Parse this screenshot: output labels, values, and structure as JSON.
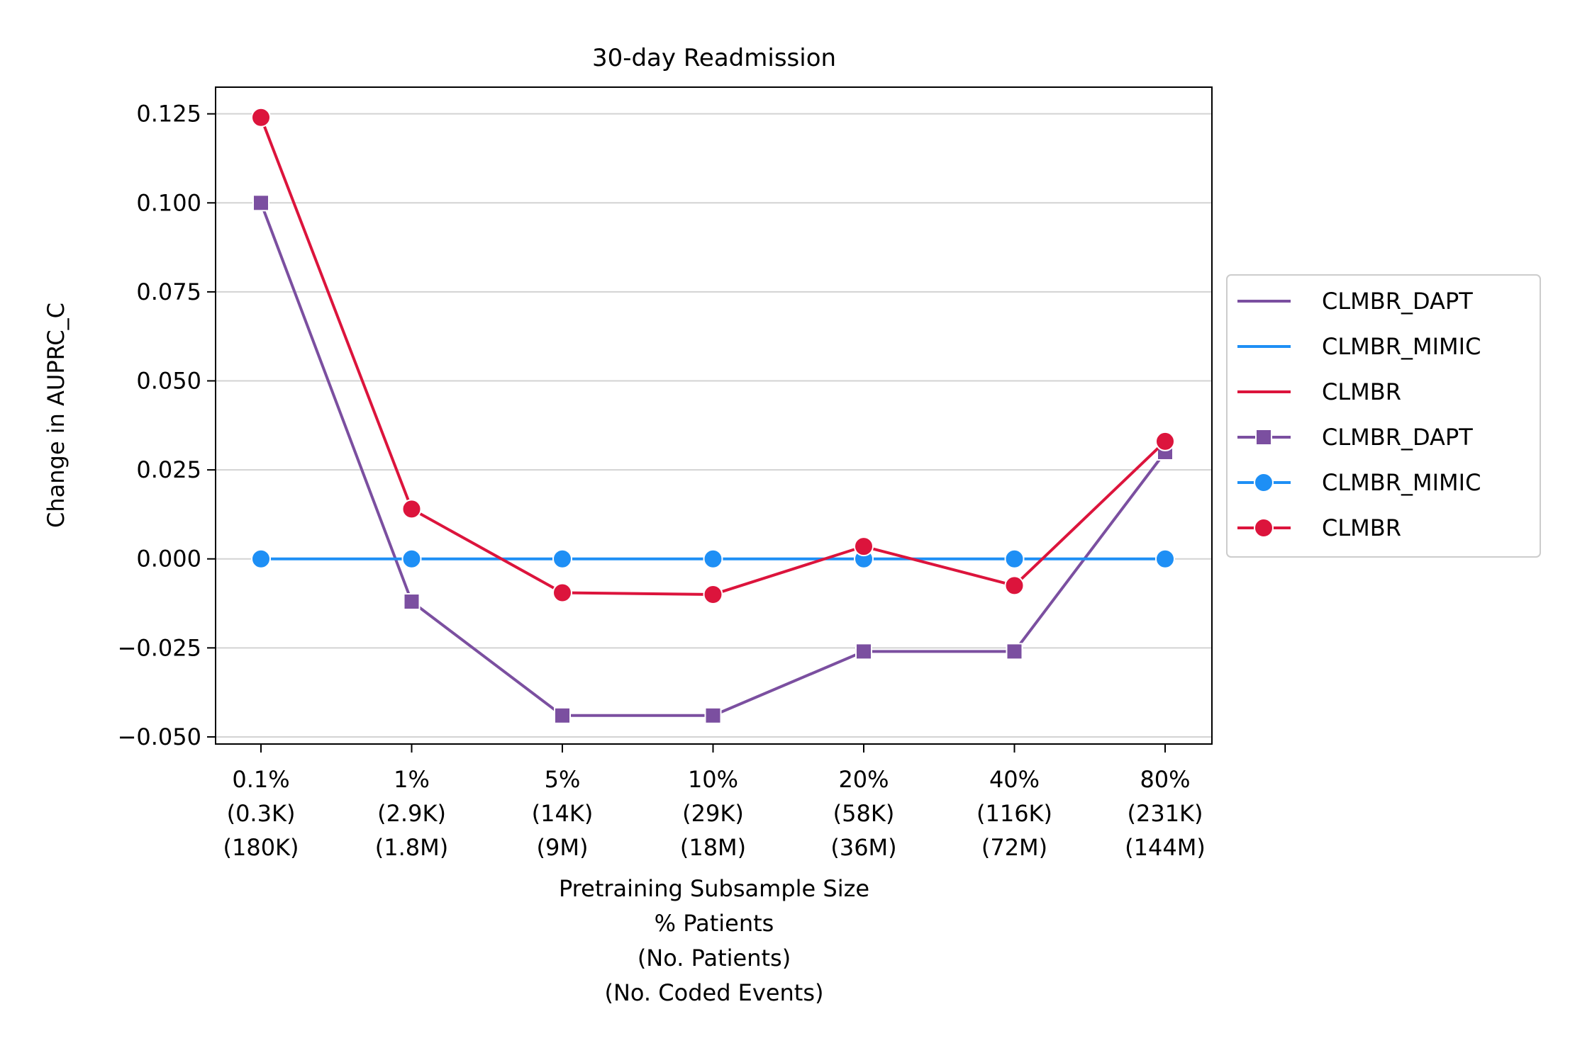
{
  "chart_data": {
    "type": "line",
    "title": "30-day Readmission",
    "xlabel": [
      "Pretraining Subsample Size",
      "% Patients",
      "(No. Patients)",
      "(No. Coded Events)"
    ],
    "ylabel": "Change in AUPRC_C",
    "categories": [
      [
        "0.1%",
        "(0.3K)",
        "(180K)"
      ],
      [
        "1%",
        "(2.9K)",
        "(1.8M)"
      ],
      [
        "5%",
        "(14K)",
        "(9M)"
      ],
      [
        "10%",
        "(29K)",
        "(18M)"
      ],
      [
        "20%",
        "(58K)",
        "(36M)"
      ],
      [
        "40%",
        "(116K)",
        "(72M)"
      ],
      [
        "80%",
        "(231K)",
        "(144M)"
      ]
    ],
    "ylim": [
      -0.052,
      0.1325
    ],
    "yticks": [
      -0.05,
      -0.025,
      0.0,
      0.025,
      0.05,
      0.075,
      0.1,
      0.125
    ],
    "ytick_labels": [
      "−0.050",
      "−0.025",
      "0.000",
      "0.025",
      "0.050",
      "0.075",
      "0.100",
      "0.125"
    ],
    "grid": "horizontal",
    "legend_position": "right, outside",
    "series": [
      {
        "name": "CLMBR_DAPT",
        "color": "#7b4fa0",
        "marker": "square",
        "values": [
          0.1,
          -0.012,
          -0.044,
          -0.044,
          -0.026,
          -0.026,
          0.03
        ]
      },
      {
        "name": "CLMBR_MIMIC",
        "color": "#1e8ff5",
        "marker": "circle",
        "values": [
          0.0,
          0.0,
          0.0,
          0.0,
          0.0,
          0.0,
          0.0
        ]
      },
      {
        "name": "CLMBR",
        "color": "#dc143c",
        "marker": "circle",
        "values": [
          0.124,
          0.014,
          -0.0095,
          -0.01,
          0.0035,
          -0.0075,
          0.033
        ]
      }
    ],
    "legend_entries": [
      {
        "label": "CLMBR_DAPT",
        "series": 0,
        "marker": false
      },
      {
        "label": "CLMBR_MIMIC",
        "series": 1,
        "marker": false
      },
      {
        "label": "CLMBR",
        "series": 2,
        "marker": false
      },
      {
        "label": "CLMBR_DAPT",
        "series": 0,
        "marker": true
      },
      {
        "label": "CLMBR_MIMIC",
        "series": 1,
        "marker": true
      },
      {
        "label": "CLMBR",
        "series": 2,
        "marker": true
      }
    ]
  }
}
